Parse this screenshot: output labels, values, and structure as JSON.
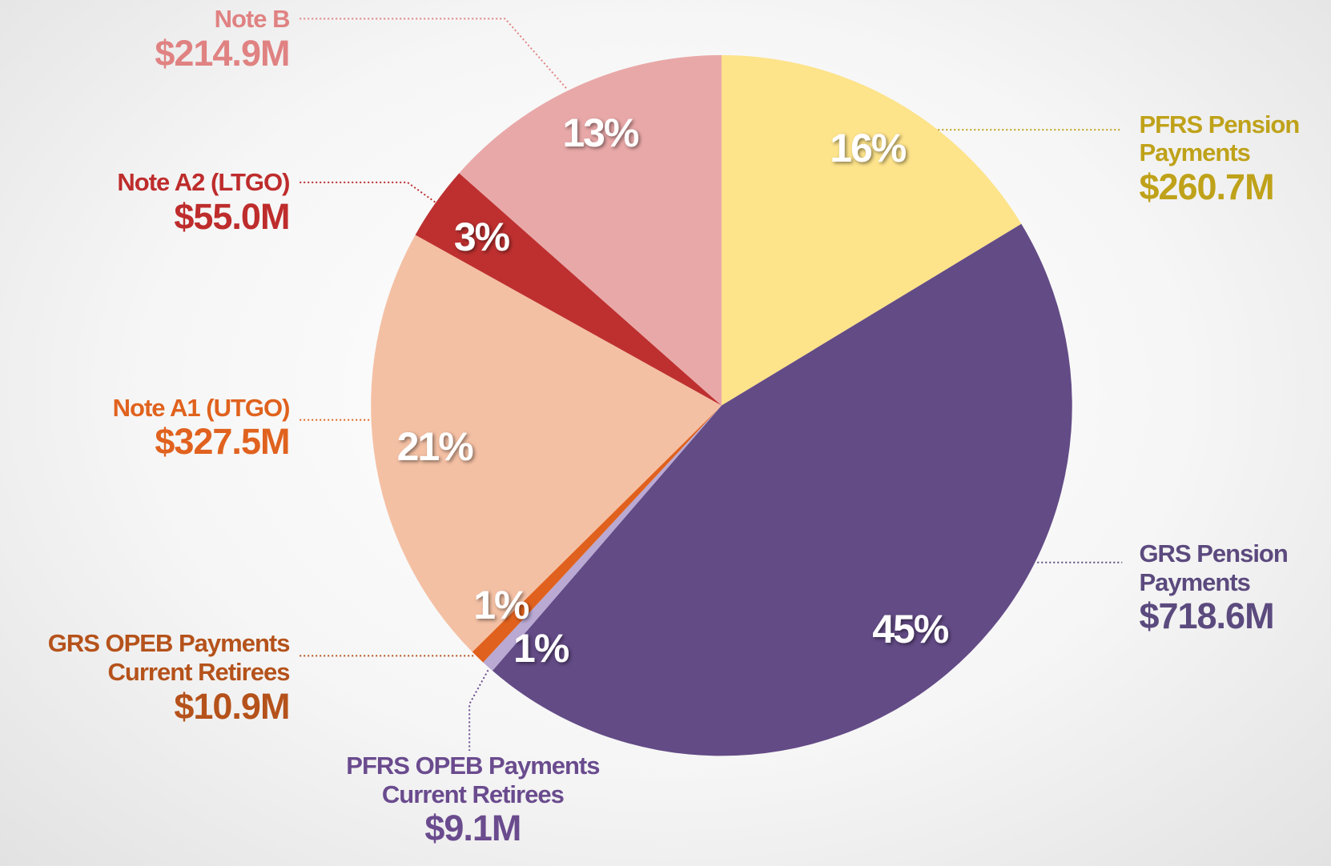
{
  "chart_data": {
    "type": "pie",
    "categories": [
      "PFRS Pension Payments",
      "GRS Pension Payments",
      "PFRS OPEB Payments Current Retirees",
      "GRS OPEB Payments Current Retirees",
      "Note A1 (UTGO)",
      "Note A2 (LTGO)",
      "Note B"
    ],
    "values": [
      260.7,
      718.6,
      9.1,
      10.9,
      327.5,
      55.0,
      214.9
    ],
    "value_labels": [
      "$260.7M",
      "$718.6M",
      "$9.1M",
      "$10.9M",
      "$327.5M",
      "$55.0M",
      "$214.9M"
    ],
    "percents": [
      16,
      45,
      1,
      1,
      21,
      3,
      13
    ],
    "percent_labels": [
      "16%",
      "45%",
      "1%",
      "1%",
      "21%",
      "3%",
      "13%"
    ],
    "colors": [
      "#fde38a",
      "#634b86",
      "#b9a9d3",
      "#e0611d",
      "#f4c0a4",
      "#be3030",
      "#e9a8a8"
    ],
    "label_colors": [
      "#bfa21a",
      "#5b4a7e",
      "#6a4b8e",
      "#b5521b",
      "#e0621e",
      "#be2c2c",
      "#e08282"
    ]
  }
}
